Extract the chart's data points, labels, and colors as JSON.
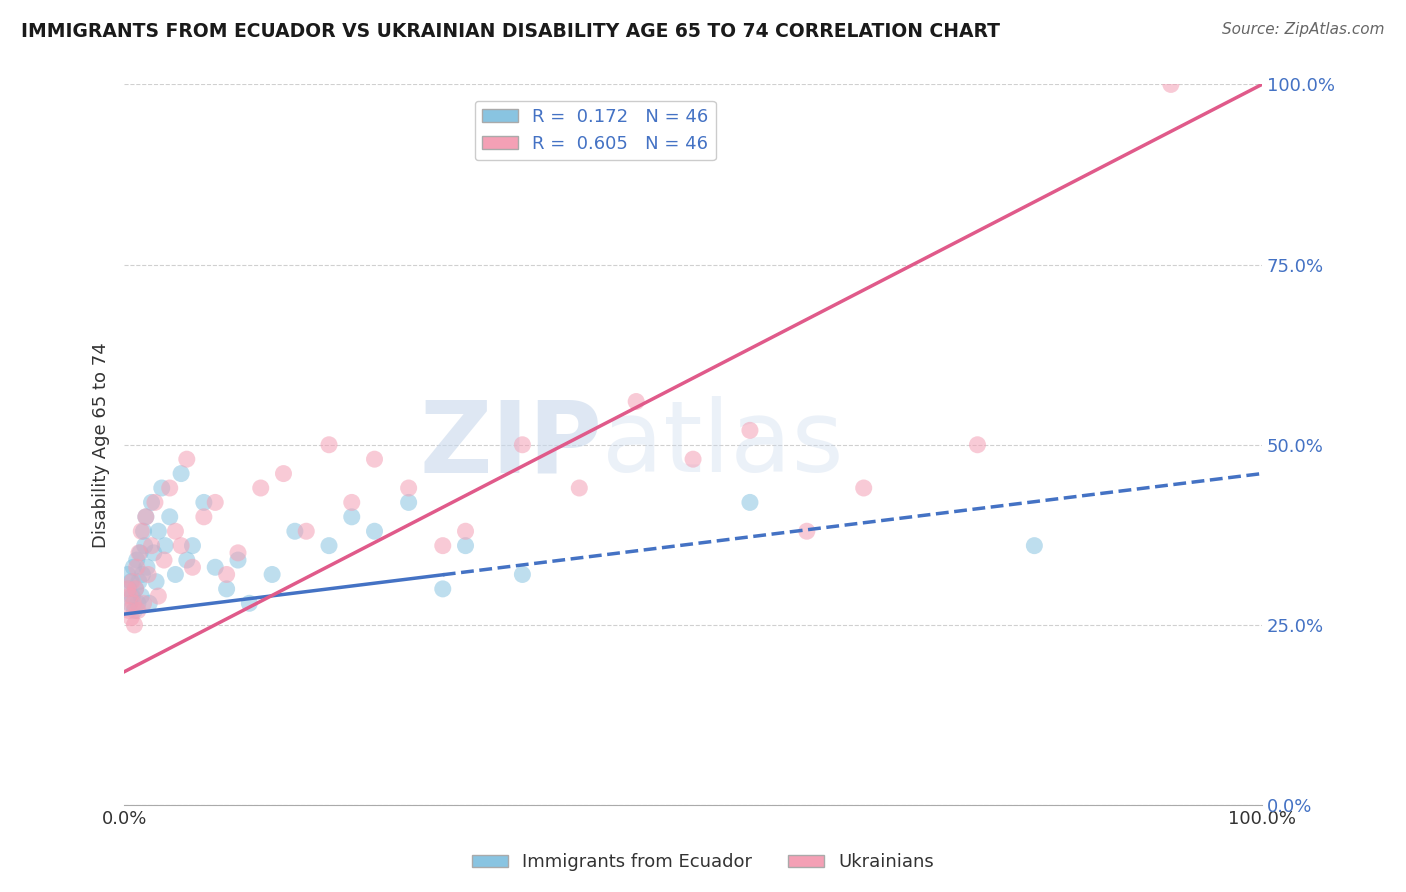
{
  "title": "IMMIGRANTS FROM ECUADOR VS UKRAINIAN DISABILITY AGE 65 TO 74 CORRELATION CHART",
  "source": "Source: ZipAtlas.com",
  "ylabel": "Disability Age 65 to 74",
  "legend_label1": "Immigrants from Ecuador",
  "legend_label2": "Ukrainians",
  "R1": 0.172,
  "N1": 46,
  "R2": 0.605,
  "N2": 46,
  "color1": "#89c4e1",
  "color2": "#f4a0b5",
  "line_color1": "#4472c4",
  "line_color2": "#e05a8a",
  "watermark_zip": "ZIP",
  "watermark_atlas": "atlas",
  "xlim": [
    0,
    1
  ],
  "ylim": [
    0,
    1
  ],
  "x_tick_labels": [
    "0.0%",
    "100.0%"
  ],
  "y_tick_labels_right": [
    "0.0%",
    "25.0%",
    "50.0%",
    "75.0%",
    "100.0%"
  ],
  "background_color": "#ffffff",
  "grid_color": "#d0d0d0",
  "ecu_x": [
    0.003,
    0.004,
    0.005,
    0.006,
    0.007,
    0.008,
    0.009,
    0.01,
    0.011,
    0.012,
    0.013,
    0.014,
    0.015,
    0.016,
    0.017,
    0.018,
    0.019,
    0.02,
    0.022,
    0.024,
    0.026,
    0.028,
    0.03,
    0.033,
    0.036,
    0.04,
    0.045,
    0.05,
    0.055,
    0.06,
    0.07,
    0.08,
    0.09,
    0.1,
    0.11,
    0.13,
    0.15,
    0.18,
    0.2,
    0.22,
    0.25,
    0.28,
    0.3,
    0.35,
    0.55,
    0.8
  ],
  "ecu_y": [
    0.32,
    0.3,
    0.28,
    0.31,
    0.29,
    0.33,
    0.27,
    0.3,
    0.34,
    0.28,
    0.31,
    0.35,
    0.29,
    0.32,
    0.38,
    0.36,
    0.4,
    0.33,
    0.28,
    0.42,
    0.35,
    0.31,
    0.38,
    0.44,
    0.36,
    0.4,
    0.32,
    0.46,
    0.34,
    0.36,
    0.42,
    0.33,
    0.3,
    0.34,
    0.28,
    0.32,
    0.38,
    0.36,
    0.4,
    0.38,
    0.42,
    0.3,
    0.36,
    0.32,
    0.42,
    0.36
  ],
  "ukr_x": [
    0.003,
    0.004,
    0.005,
    0.006,
    0.007,
    0.008,
    0.009,
    0.01,
    0.011,
    0.012,
    0.013,
    0.015,
    0.017,
    0.019,
    0.021,
    0.024,
    0.027,
    0.03,
    0.035,
    0.04,
    0.045,
    0.05,
    0.055,
    0.06,
    0.07,
    0.08,
    0.09,
    0.1,
    0.12,
    0.14,
    0.16,
    0.18,
    0.2,
    0.22,
    0.25,
    0.28,
    0.3,
    0.35,
    0.4,
    0.45,
    0.5,
    0.55,
    0.6,
    0.65,
    0.75,
    0.92
  ],
  "ukr_y": [
    0.3,
    0.27,
    0.29,
    0.26,
    0.31,
    0.28,
    0.25,
    0.3,
    0.33,
    0.27,
    0.35,
    0.38,
    0.28,
    0.4,
    0.32,
    0.36,
    0.42,
    0.29,
    0.34,
    0.44,
    0.38,
    0.36,
    0.48,
    0.33,
    0.4,
    0.42,
    0.32,
    0.35,
    0.44,
    0.46,
    0.38,
    0.5,
    0.42,
    0.48,
    0.44,
    0.36,
    0.38,
    0.5,
    0.44,
    0.56,
    0.48,
    0.52,
    0.38,
    0.44,
    0.5,
    1.0
  ],
  "ecu_line_x0": 0.0,
  "ecu_line_x1": 1.0,
  "ecu_line_y0": 0.265,
  "ecu_line_y1": 0.46,
  "ukr_line_x0": 0.0,
  "ukr_line_x1": 1.0,
  "ukr_line_y0": 0.185,
  "ukr_line_y1": 1.0
}
